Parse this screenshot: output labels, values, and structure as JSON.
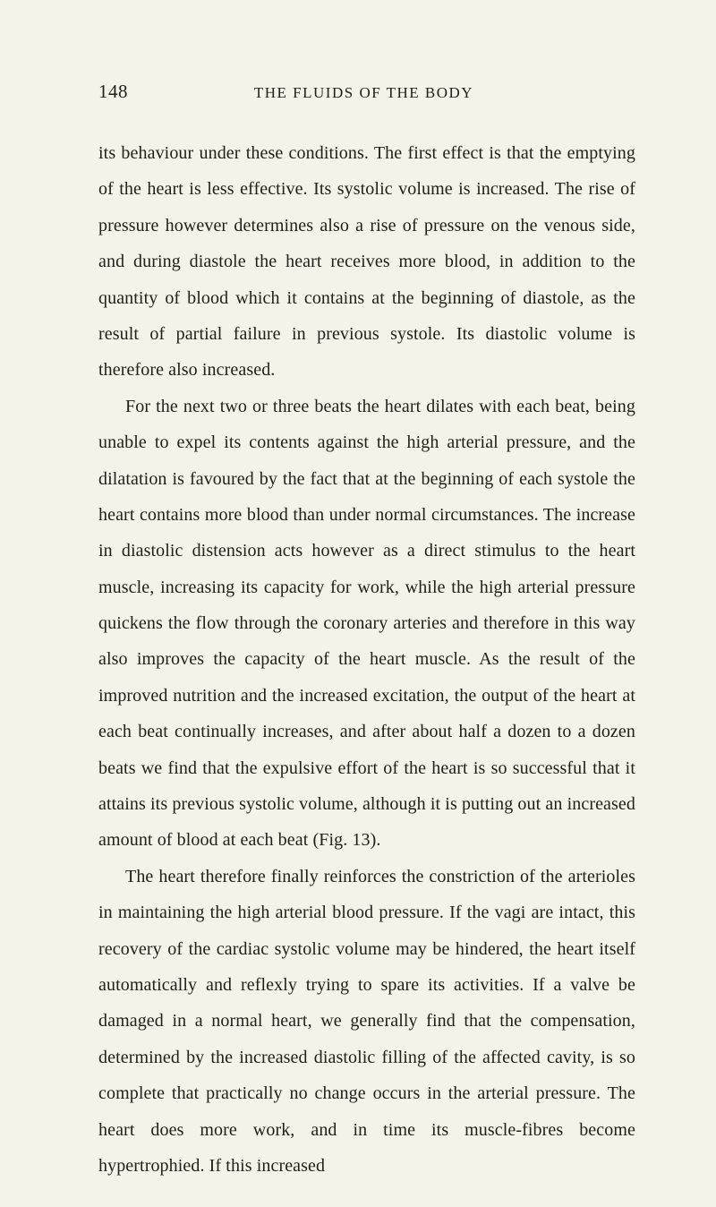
{
  "page": {
    "number": "148",
    "running_title": "THE FLUIDS OF THE BODY",
    "background_color": "#f5f2e8",
    "text_color": "#232018",
    "font_family": "Georgia, 'Times New Roman', serif",
    "body_font_size": 20,
    "line_height": 2.02,
    "header_font_size": 17,
    "page_number_font_size": 21
  },
  "paragraphs": {
    "p1": "its behaviour under these conditions. The first effect is that the emptying of the heart is less effective. Its systolic volume is increased. The rise of pressure however determines also a rise of pressure on the venous side, and during diastole the heart receives more blood, in addition to the quantity of blood which it contains at the beginning of diastole, as the result of partial failure in previous systole. Its diastolic volume is therefore also increased.",
    "p2": "For the next two or three beats the heart dilates with each beat, being unable to expel its contents against the high arterial pressure, and the dilatation is favoured by the fact that at the beginning of each systole the heart contains more blood than under normal circumstances. The increase in diastolic distension acts however as a direct stimulus to the heart muscle, increasing its capacity for work, while the high arterial pressure quickens the flow through the coronary arteries and therefore in this way also improves the capacity of the heart muscle. As the result of the improved nutrition and the increased excitation, the output of the heart at each beat con­tinually increases, and after about half a dozen to a dozen beats we find that the expulsive effort of the heart is so successful that it attains its previous systolic volume, although it is putting out an increased amount of blood at each beat (Fig. 13).",
    "p3": "The heart therefore finally reinforces the constriction of the arterioles in maintaining the high arterial blood pressure. If the vagi are intact, this recovery of the cardiac systolic volume may be hindered, the heart itself automatically and reflexly trying to spare its activities. If a valve be damaged in a normal heart, we generally find that the compensation, determined by the increased diastolic filling of the affected cavity, is so complete that practically no change occurs in the arterial pressure. The heart does more work, and in time its muscle-fibres become hypertrophied. If this increased"
  }
}
